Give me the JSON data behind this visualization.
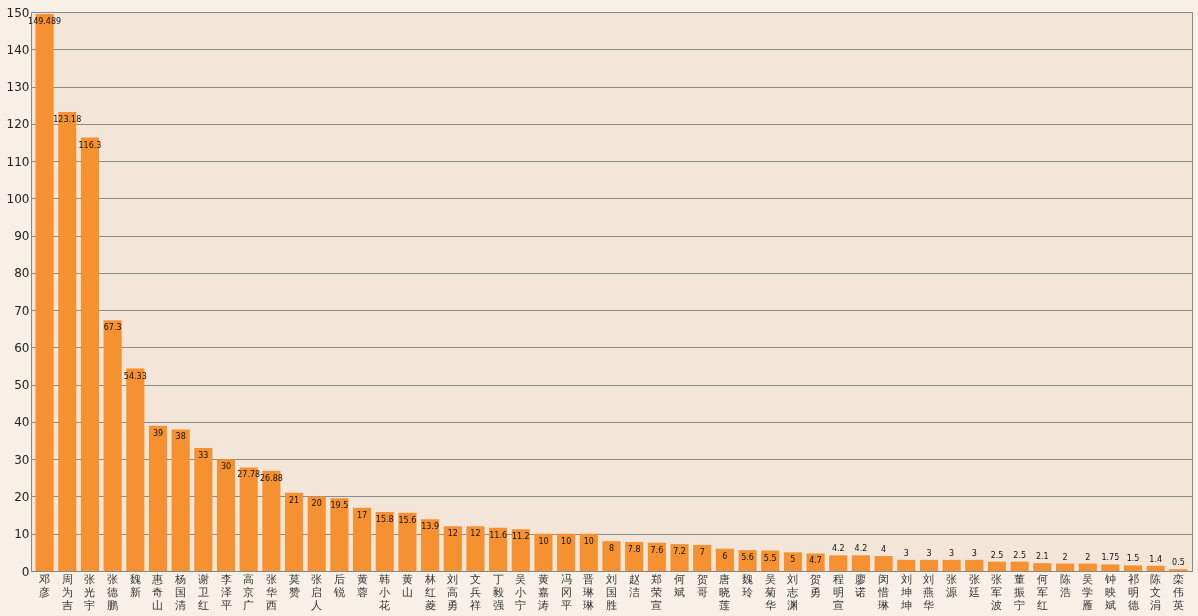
{
  "chart_data": {
    "type": "bar",
    "categories": [
      "邓彦",
      "周为吉",
      "张光宇",
      "张德鹏",
      "魏新",
      "惠奇山",
      "杨国清",
      "谢卫红",
      "李泽平",
      "高京广",
      "张华西",
      "莫赞",
      "张启人",
      "后锐",
      "黄蓉",
      "韩小花",
      "黄山",
      "林红菱",
      "刘高勇",
      "文兵祥",
      "丁毅强",
      "吴小宁",
      "黄嘉涛",
      "冯冈平",
      "晋琳琳",
      "刘国胜",
      "赵洁",
      "郑荣宣",
      "何斌",
      "贺哥",
      "唐晓莲",
      "魏玲",
      "吴菊华",
      "刘志渊",
      "贺勇",
      "程明宣",
      "廖诺",
      "闵惜琳",
      "刘坤坤",
      "刘燕华",
      "张源",
      "张廷",
      "张军波",
      "董振宁",
      "何军红",
      "陈浩",
      "吴学雁",
      "钟映斌",
      "祁明德",
      "陈文涓",
      "栾伟英"
    ],
    "values": [
      149.489,
      123.18,
      116.3,
      67.3,
      54.33,
      39,
      38,
      33,
      30,
      27.78,
      26.88,
      21,
      20,
      19.5,
      17,
      15.8,
      15.6,
      13.9,
      12,
      12,
      11.6,
      11.2,
      10,
      10,
      10,
      8,
      7.8,
      7.6,
      7.2,
      7,
      6,
      5.6,
      5.5,
      5,
      4.7,
      4.2,
      4.2,
      4,
      3,
      3,
      3,
      3,
      2.5,
      2.5,
      2.1,
      2,
      2,
      1.75,
      1.5,
      1.4,
      0.5
    ],
    "color": "#f59131",
    "ylim": [
      0,
      150
    ],
    "yticks": [
      0,
      10,
      20,
      30,
      40,
      50,
      60,
      70,
      80,
      90,
      100,
      110,
      120,
      130,
      140,
      150
    ],
    "grid": "y",
    "data_labels": true
  }
}
